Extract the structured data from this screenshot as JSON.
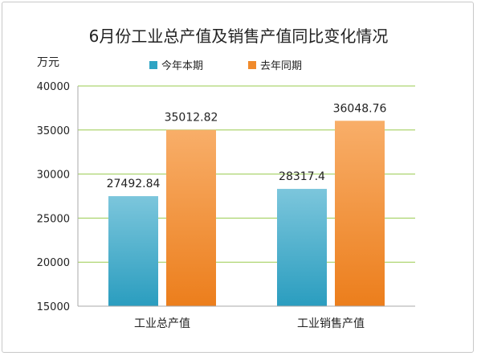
{
  "chart_data": {
    "type": "bar",
    "title": "6月份工业总产值及销售产值同比变化情况",
    "ylabel": "万元",
    "xlabel": "",
    "categories": [
      "工业总产值",
      "工业销售产值"
    ],
    "series": [
      {
        "name": "今年本期",
        "values": [
          27492.84,
          28317.4
        ],
        "value_labels": [
          "27492.84",
          "28317.4"
        ],
        "color": "#2fa4c4"
      },
      {
        "name": "去年同期",
        "values": [
          35012.82,
          36048.76
        ],
        "value_labels": [
          "35012.82",
          "36048.76"
        ],
        "color": "#f08a2c"
      }
    ],
    "ylim": [
      15000,
      40000
    ],
    "yticks": [
      15000,
      20000,
      25000,
      30000,
      35000,
      40000
    ],
    "ytick_labels": [
      "15000",
      "20000",
      "25000",
      "30000",
      "35000",
      "40000"
    ],
    "grid": true,
    "grid_color": "#9acb4f",
    "legend_position": "top"
  }
}
